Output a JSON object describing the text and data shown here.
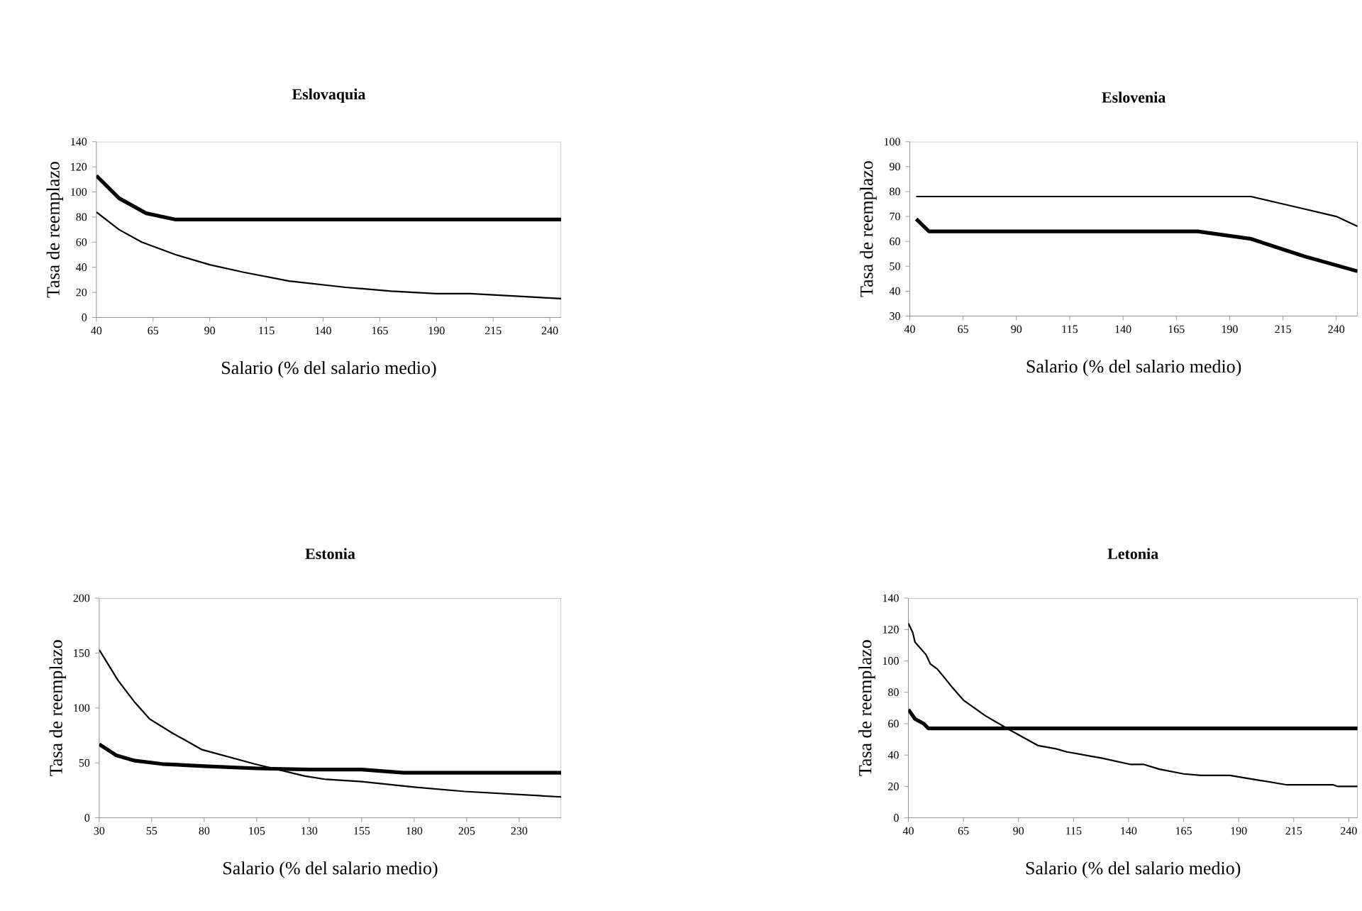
{
  "chart_data": [
    {
      "type": "line",
      "title": "Eslovaquia",
      "xlabel": "Salario (% del salario medio)",
      "ylabel": "Tasa de reemplazo",
      "xlim": [
        40,
        245
      ],
      "ylim": [
        0,
        140
      ],
      "xticks": [
        40,
        65,
        90,
        115,
        140,
        165,
        190,
        215,
        240
      ],
      "yticks": [
        0,
        20,
        40,
        60,
        80,
        100,
        120,
        140
      ],
      "grid": false,
      "series": [
        {
          "color": "#000000",
          "x": [
            40,
            50,
            62,
            75,
            245
          ],
          "values": [
            113,
            95,
            83,
            78,
            78
          ]
        },
        {
          "color": "#000000",
          "x": [
            40,
            50,
            60,
            75,
            90,
            105,
            125,
            150,
            170,
            190,
            205,
            225,
            245
          ],
          "values": [
            84,
            70,
            60,
            50,
            42,
            36,
            29,
            24,
            21,
            19,
            19,
            17,
            15
          ]
        }
      ]
    },
    {
      "type": "line",
      "title": "Eslovenia",
      "xlabel": "Salario (% del salario medio)",
      "ylabel": "Tasa de reemplazo",
      "xlim": [
        40,
        250
      ],
      "ylim": [
        30,
        100
      ],
      "xticks": [
        40,
        65,
        90,
        115,
        140,
        165,
        190,
        215,
        240
      ],
      "yticks": [
        30,
        40,
        50,
        60,
        70,
        80,
        90,
        100
      ],
      "grid": false,
      "series": [
        {
          "color": "#000000",
          "x": [
            43,
            49,
            175,
            200,
            225,
            250
          ],
          "values": [
            69,
            64,
            64,
            61,
            54,
            48
          ]
        },
        {
          "color": "#000000",
          "x": [
            43,
            200,
            215,
            225,
            240,
            250
          ],
          "values": [
            78,
            78,
            75,
            73,
            70,
            66
          ]
        }
      ]
    },
    {
      "type": "line",
      "title": "Estonia",
      "xlabel": "Salario (% del salario medio)",
      "ylabel": "Tasa de reemplazo",
      "xlim": [
        30,
        250
      ],
      "ylim": [
        0,
        200
      ],
      "xticks": [
        30,
        55,
        80,
        105,
        130,
        155,
        180,
        205,
        230
      ],
      "yticks": [
        0,
        50,
        100,
        150,
        200
      ],
      "grid": false,
      "series": [
        {
          "color": "#000000",
          "x": [
            30,
            38,
            47,
            60,
            80,
            105,
            130,
            155,
            175,
            250
          ],
          "values": [
            67,
            57,
            52,
            49,
            47,
            45,
            44,
            44,
            41,
            41
          ]
        },
        {
          "color": "#000000",
          "x": [
            30,
            39,
            47,
            54,
            65,
            79,
            104,
            128,
            138,
            155,
            180,
            204,
            250
          ],
          "values": [
            153,
            125,
            105,
            90,
            77,
            62,
            49,
            38,
            35,
            33,
            28,
            24,
            19
          ]
        }
      ]
    },
    {
      "type": "line",
      "title": "Letonia",
      "xlabel": "Salario (% del salario medio)",
      "ylabel": "Tasa de reemplazo",
      "xlim": [
        40,
        244
      ],
      "ylim": [
        0,
        140
      ],
      "xticks": [
        40,
        65,
        90,
        115,
        140,
        165,
        190,
        215,
        240
      ],
      "yticks": [
        0,
        20,
        40,
        60,
        80,
        100,
        120,
        140
      ],
      "grid": false,
      "series": [
        {
          "color": "#000000",
          "x": [
            40,
            43,
            47,
            49,
            244
          ],
          "values": [
            69,
            63,
            60,
            57,
            57
          ]
        },
        {
          "color": "#000000",
          "x": [
            40,
            42,
            43,
            48,
            50,
            53,
            56,
            60,
            65,
            75,
            86,
            99,
            107,
            112,
            128,
            141,
            147,
            154,
            165,
            173,
            186,
            199,
            212,
            224,
            233,
            235,
            244
          ],
          "values": [
            124,
            118,
            112,
            104,
            98,
            95,
            90,
            83,
            75,
            65,
            56,
            46,
            44,
            42,
            38,
            34,
            34,
            31,
            28,
            27,
            27,
            24,
            21,
            21,
            21,
            20,
            20
          ]
        }
      ]
    }
  ]
}
